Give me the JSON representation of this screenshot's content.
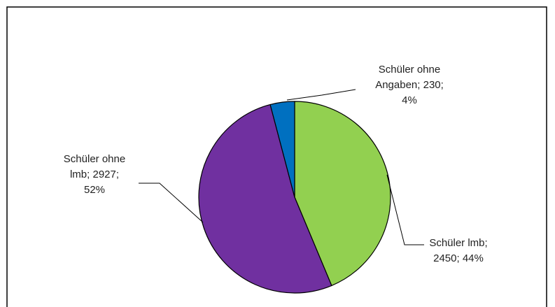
{
  "chart_data": {
    "type": "pie",
    "title": "",
    "start_angle_deg": 0,
    "direction": "clockwise",
    "slices": [
      {
        "name": "Schüler lmb",
        "value": 2450,
        "percent_label": "44%",
        "color": "#92d050",
        "label_lines": [
          "Schüler lmb;",
          "2450; 44%"
        ]
      },
      {
        "name": "Schüler ohne lmb",
        "value": 2927,
        "percent_label": "52%",
        "color": "#7030a0",
        "label_lines": [
          "Schüler ohne",
          "lmb;  2927;",
          "52%"
        ]
      },
      {
        "name": "Schüler ohne Angaben",
        "value": 230,
        "percent_label": "4%",
        "color": "#0070c0",
        "label_lines": [
          "Schüler ohne",
          "Angaben; 230;",
          "4%"
        ]
      }
    ],
    "legend": "none",
    "data_labels": "outside with leader lines"
  }
}
